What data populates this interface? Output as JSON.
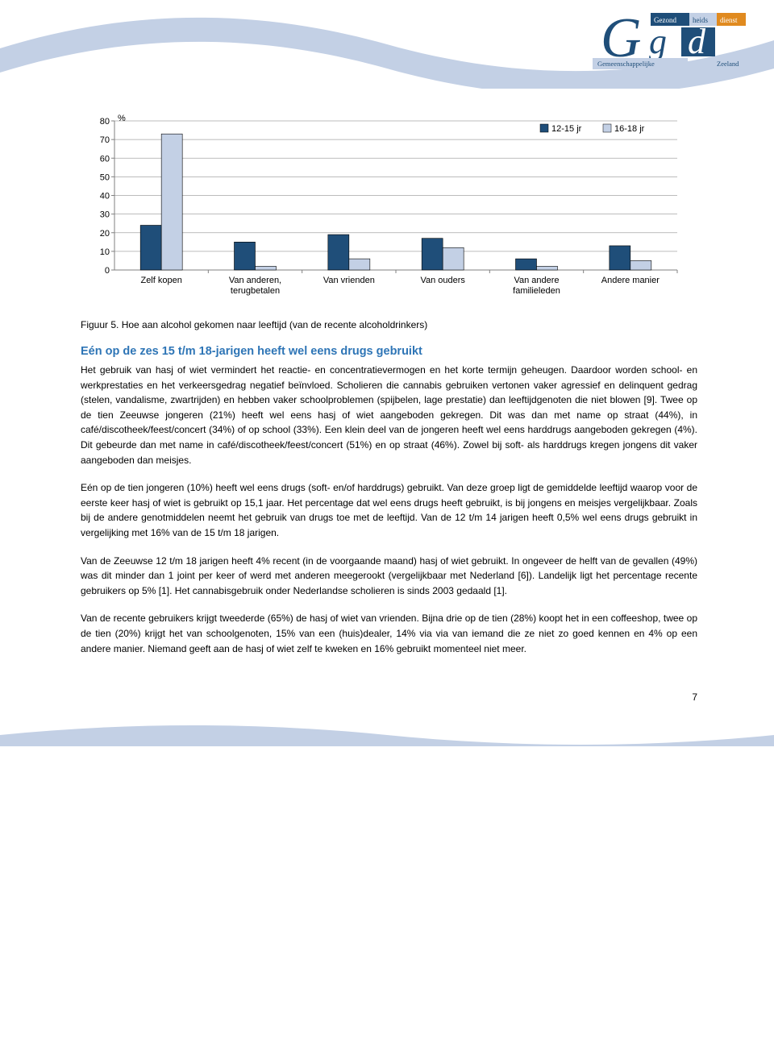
{
  "logo": {
    "brand_g": "G",
    "brand_gd": "g d",
    "brand_top1": "Gezond",
    "brand_top2": "heids",
    "brand_top3": "dienst",
    "brand_bot1": "Gemeenschappelijke",
    "brand_bot2": "Zeeland",
    "color_blue": "#1f4e79",
    "color_light": "#c3d0e5",
    "color_orange": "#e08a1f"
  },
  "wave_color": "#c3d0e5",
  "chart": {
    "type": "grouped-bar",
    "y_label": "%",
    "legend": [
      {
        "label": "12-15 jr",
        "color": "#1f4e79"
      },
      {
        "label": "16-18 jr",
        "color": "#c3d0e5"
      }
    ],
    "categories": [
      "Zelf kopen",
      "Van anderen, terugbetalen",
      "Van vrienden",
      "Van ouders",
      "Van andere familieleden",
      "Andere manier"
    ],
    "series1_values": [
      24,
      15,
      19,
      17,
      6,
      13
    ],
    "series2_values": [
      73,
      2,
      6,
      12,
      2,
      5
    ],
    "series1_color": "#1f4e79",
    "series2_color": "#c3d0e5",
    "ylim": [
      0,
      80
    ],
    "ytick_step": 10,
    "grid_color": "#a6a6a6",
    "axis_color": "#808080",
    "background": "#ffffff",
    "bar_border": "#000000",
    "label_fontsize": 11
  },
  "caption": "Figuur 5. Hoe aan alcohol gekomen naar leeftijd (van de recente alcoholdrinkers)",
  "section_title": "Eén op de zes 15 t/m 18-jarigen heeft wel eens drugs gebruikt",
  "section_title_color": "#2e75b6",
  "paragraphs": [
    "Het gebruik van hasj of wiet vermindert het reactie- en concentratievermogen en het korte termijn geheugen. Daardoor worden school- en werkprestaties en het verkeersgedrag negatief beïnvloed. Scholieren die cannabis gebruiken vertonen vaker agressief en delinquent gedrag (stelen, vandalisme, zwartrijden) en hebben vaker schoolproblemen (spijbelen, lage prestatie) dan leeftijdgenoten die niet blowen [9]. Twee op de tien Zeeuwse jongeren (21%) heeft wel eens hasj of wiet aangeboden gekregen. Dit was dan met name op straat (44%), in café/discotheek/feest/concert (34%) of op school (33%). Een klein deel van de jongeren heeft wel eens harddrugs aangeboden gekregen (4%). Dit gebeurde dan met name in café/discotheek/feest/concert (51%) en op straat (46%). Zowel bij soft- als harddrugs kregen jongens dit vaker aangeboden dan meisjes.",
    "Eén op de tien jongeren (10%) heeft wel eens drugs (soft- en/of harddrugs) gebruikt. Van deze groep ligt de gemiddelde leeftijd waarop voor de eerste keer hasj of wiet is gebruikt op 15,1 jaar. Het percentage dat wel eens drugs heeft gebruikt, is bij jongens en meisjes vergelijkbaar. Zoals bij de andere genotmiddelen neemt het gebruik van drugs toe met de leeftijd. Van de 12 t/m 14 jarigen heeft 0,5% wel eens drugs gebruikt in vergelijking met 16% van de 15 t/m 18 jarigen.",
    "Van de Zeeuwse 12 t/m 18 jarigen heeft 4% recent (in de voorgaande maand) hasj of wiet gebruikt. In ongeveer de helft van de gevallen (49%) was dit minder dan 1 joint per keer of werd met anderen meegerookt (vergelijkbaar met Nederland [6]). Landelijk ligt het percentage recente gebruikers op 5% [1]. Het cannabisgebruik onder Nederlandse scholieren is sinds 2003 gedaald [1].",
    "Van de recente gebruikers krijgt tweederde (65%) de hasj of wiet van vrienden. Bijna drie op de tien (28%) koopt het in een coffeeshop, twee op de tien (20%) krijgt het van schoolgenoten, 15% van een (huis)dealer, 14% via via van iemand die ze niet zo goed kennen en 4% op een andere manier. Niemand geeft aan de hasj of wiet zelf te kweken en 16% gebruikt momenteel niet meer."
  ],
  "page_number": "7"
}
